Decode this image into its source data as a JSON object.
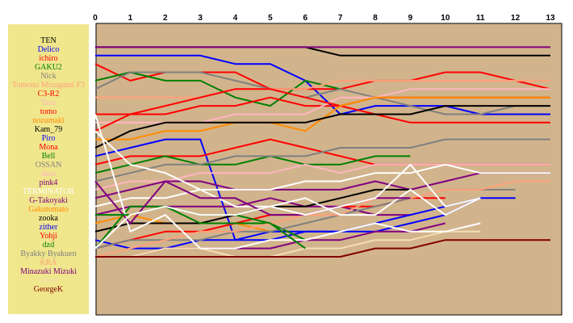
{
  "chart_data": {
    "type": "line",
    "x": [
      0,
      1,
      2,
      3,
      4,
      5,
      6,
      7,
      8,
      9,
      10,
      11,
      12,
      13
    ],
    "ylim": [
      1,
      27
    ],
    "y_inverted": true,
    "grid": false,
    "background": "#d2b48c",
    "legend_background": "#f0e68c",
    "series": [
      {
        "name": "TEN",
        "color": "#000000",
        "values": [
          2,
          2,
          2,
          2,
          2,
          2,
          2,
          3,
          3,
          3,
          3,
          3,
          3,
          3
        ]
      },
      {
        "name": "Delico",
        "color": "#0000ff",
        "values": [
          3,
          3,
          3,
          3,
          4,
          4,
          6,
          10,
          9,
          9,
          9,
          10,
          10,
          10
        ]
      },
      {
        "name": "ichiro",
        "color": "#ff0000",
        "values": [
          4,
          6,
          5,
          5,
          5,
          7,
          7,
          7,
          6,
          6,
          5,
          5,
          6,
          7
        ]
      },
      {
        "name": "GAKU2",
        "color": "#008000",
        "values": [
          6,
          5,
          6,
          6,
          8,
          9,
          6,
          7,
          null,
          null,
          null,
          null,
          null,
          null
        ]
      },
      {
        "name": "Nick",
        "color": "#808080",
        "values": [
          7,
          5,
          5,
          5,
          6,
          7,
          8,
          7,
          8,
          9,
          10,
          10,
          9,
          9
        ]
      },
      {
        "name": "Tomono Mizugami F3",
        "color": "#ffa07a",
        "values": [
          8,
          8,
          8,
          8,
          7,
          7,
          7,
          6,
          6,
          6,
          6,
          6,
          6,
          6
        ]
      },
      {
        "name": "C3-R2",
        "color": "#ff0000",
        "values": [
          10,
          10,
          10,
          9,
          9,
          8,
          9,
          9,
          8,
          8,
          8,
          8,
          8,
          8
        ]
      },
      {
        "name": "Taco",
        "color": "#ffb6c1",
        "values": [
          11,
          11,
          11,
          11,
          10,
          10,
          10,
          8,
          8,
          7,
          7,
          7,
          7,
          7
        ]
      },
      {
        "name": "tomo",
        "color": "#ff0000",
        "values": [
          12,
          10,
          9,
          8,
          7,
          7,
          8,
          9,
          10,
          11,
          11,
          11,
          11,
          11
        ]
      },
      {
        "name": "nozumaki",
        "color": "#ff8c00",
        "values": [
          13,
          13,
          12,
          12,
          11,
          11,
          12,
          9,
          8,
          8,
          8,
          8,
          8,
          8
        ]
      },
      {
        "name": "Kam_79",
        "color": "#000000",
        "values": [
          14,
          12,
          11,
          11,
          11,
          11,
          11,
          10,
          10,
          10,
          9,
          9,
          9,
          9
        ]
      },
      {
        "name": "Piro",
        "color": "#0000ff",
        "values": [
          15,
          14,
          13,
          13,
          25,
          24,
          24,
          24,
          24,
          23,
          22,
          20,
          null,
          null
        ]
      },
      {
        "name": "Mona",
        "color": "#ff0000",
        "values": [
          16,
          15,
          15,
          15,
          14,
          13,
          14,
          15,
          16,
          16,
          16,
          16,
          16,
          16
        ]
      },
      {
        "name": "Bell",
        "color": "#008000",
        "values": [
          17,
          16,
          15,
          16,
          16,
          15,
          16,
          16,
          15,
          15,
          null,
          null,
          null,
          null
        ]
      },
      {
        "name": "OSSAN",
        "color": "#808080",
        "values": [
          18,
          17,
          16,
          16,
          15,
          15,
          15,
          14,
          14,
          14,
          13,
          13,
          13,
          13
        ]
      },
      {
        "name": "daze",
        "color": "#ffb6c1",
        "values": [
          19,
          18,
          18,
          17,
          17,
          17,
          16,
          17,
          16,
          16,
          16,
          16,
          16,
          16
        ]
      },
      {
        "name": "pink4",
        "color": "#800080",
        "values": [
          20,
          19,
          18,
          18,
          19,
          19,
          19,
          19,
          18,
          19,
          18,
          17,
          17,
          17
        ]
      },
      {
        "name": "TERMINATOR",
        "color": "#ffffff",
        "values": [
          21,
          20,
          20,
          19,
          19,
          19,
          18,
          18,
          17,
          17,
          16,
          17,
          17,
          17
        ]
      },
      {
        "name": "G-Takoyaki",
        "color": "#800080",
        "values": [
          22,
          21,
          21,
          21,
          21,
          20,
          21,
          21,
          22,
          22,
          null,
          null,
          null,
          null
        ]
      },
      {
        "name": "Gakutomato",
        "color": "#ff8c00",
        "values": [
          23,
          22,
          23,
          23,
          23,
          24,
          null,
          null,
          null,
          null,
          null,
          null,
          null,
          null
        ]
      },
      {
        "name": "zooka",
        "color": "#000000",
        "values": [
          24,
          23,
          23,
          23,
          22,
          21,
          21,
          20,
          19,
          19,
          null,
          null,
          null,
          null
        ]
      },
      {
        "name": "zither",
        "color": "#0000ff",
        "values": [
          25,
          26,
          26,
          25,
          25,
          25,
          24,
          24,
          23,
          22,
          21,
          20,
          20,
          null
        ]
      },
      {
        "name": "Yohji",
        "color": "#ff0000",
        "values": [
          26,
          25,
          24,
          24,
          23,
          22,
          22,
          21,
          21,
          20,
          20,
          null,
          null,
          null
        ]
      },
      {
        "name": "dzd",
        "color": "#008000",
        "values": [
          26,
          21,
          21,
          23,
          23,
          23,
          25,
          null,
          null,
          null,
          null,
          null,
          null,
          null
        ]
      },
      {
        "name": "Byakky Byakuen",
        "color": "#808080",
        "values": [
          26,
          25,
          25,
          25,
          24,
          24,
          23,
          22,
          21,
          20,
          19,
          19,
          19,
          null
        ]
      },
      {
        "name": "KRA",
        "color": "#ffa07a",
        "values": [
          27,
          26,
          25,
          24,
          24,
          23,
          22,
          22,
          20,
          20,
          19,
          19,
          18,
          18
        ]
      },
      {
        "name": "Minazuki Mizuki",
        "color": "#800080",
        "values": [
          27,
          27,
          26,
          26,
          26,
          26,
          25,
          25,
          24,
          24,
          23,
          null,
          null,
          null
        ]
      },
      {
        "name": "Ghost",
        "color": "#f5deb3",
        "values": [
          27,
          27,
          26,
          26,
          27,
          27,
          26,
          26,
          25,
          25,
          24,
          24,
          null,
          null
        ]
      },
      {
        "name": "GeorgeK",
        "color": "#800000",
        "values": [
          27,
          27,
          27,
          27,
          27,
          27,
          27,
          27,
          26,
          26,
          25,
          25,
          25,
          25
        ]
      },
      {
        "name": "",
        "color": "#800080",
        "values": [
          2,
          2,
          2,
          2,
          2,
          2,
          2,
          2,
          2,
          2,
          2,
          2,
          2,
          2
        ]
      },
      {
        "name": "",
        "color": "#ffffff",
        "values": [
          10,
          24,
          22,
          26,
          26,
          25,
          25,
          24,
          23,
          24,
          24,
          23,
          null,
          null
        ]
      },
      {
        "name": "",
        "color": "#ffffff",
        "values": [
          12,
          16,
          17,
          19,
          21,
          21,
          20,
          22,
          22,
          19,
          22,
          20,
          null,
          null
        ]
      },
      {
        "name": "",
        "color": "#800080",
        "values": [
          18,
          23,
          18,
          20,
          20,
          22,
          22,
          21,
          20,
          20,
          null,
          null,
          null,
          null
        ]
      },
      {
        "name": "",
        "color": "#008000",
        "values": [
          22,
          22,
          21,
          22,
          22,
          23,
          26,
          null,
          null,
          null,
          null,
          null,
          null,
          null
        ]
      },
      {
        "name": "",
        "color": "#ffffff",
        "values": [
          26,
          22,
          21,
          22,
          22,
          21,
          22,
          21,
          20,
          16,
          21,
          20,
          null,
          null
        ]
      }
    ]
  }
}
